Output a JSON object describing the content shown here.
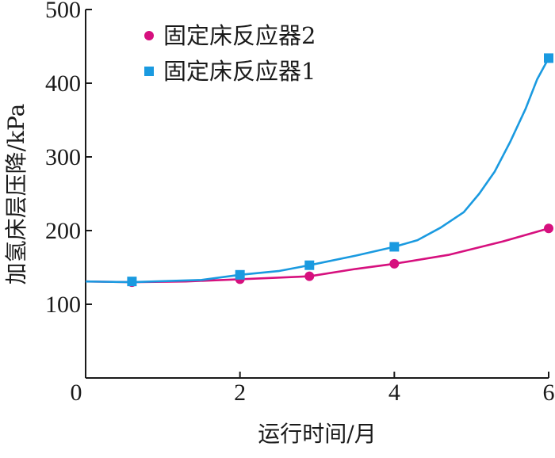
{
  "chart_data": {
    "type": "line",
    "xlabel": "运行时间/月",
    "ylabel": "加氢床层压降/kPa",
    "xlim": [
      0,
      6
    ],
    "ylim": [
      0,
      500
    ],
    "x_ticks": [
      2,
      4,
      6
    ],
    "y_ticks": [
      100,
      200,
      300,
      400,
      500
    ],
    "origin_label": "0",
    "legend_position": "top-left",
    "grid": false,
    "series": [
      {
        "name": "固定床反应器2",
        "color": "#d6107e",
        "marker": "circle",
        "points": [
          [
            0.6,
            130
          ],
          [
            2.0,
            134
          ],
          [
            2.9,
            138
          ],
          [
            4.0,
            155
          ],
          [
            6.0,
            203
          ]
        ],
        "curve": [
          [
            0,
            131
          ],
          [
            0.6,
            130
          ],
          [
            1.3,
            131
          ],
          [
            2.0,
            134
          ],
          [
            2.9,
            138
          ],
          [
            3.5,
            148
          ],
          [
            4.0,
            155
          ],
          [
            4.7,
            167
          ],
          [
            5.4,
            185
          ],
          [
            6.0,
            203
          ]
        ]
      },
      {
        "name": "固定床反应器1",
        "color": "#1a9ae0",
        "marker": "square",
        "points": [
          [
            0.6,
            131
          ],
          [
            2.0,
            140
          ],
          [
            2.9,
            153
          ],
          [
            4.0,
            178
          ],
          [
            6.0,
            434
          ]
        ],
        "curve": [
          [
            0,
            131
          ],
          [
            0.6,
            130
          ],
          [
            1.5,
            133
          ],
          [
            2.0,
            140
          ],
          [
            2.5,
            145
          ],
          [
            2.9,
            153
          ],
          [
            3.5,
            166
          ],
          [
            4.0,
            178
          ],
          [
            4.3,
            187
          ],
          [
            4.6,
            204
          ],
          [
            4.9,
            225
          ],
          [
            5.1,
            250
          ],
          [
            5.3,
            280
          ],
          [
            5.5,
            320
          ],
          [
            5.7,
            365
          ],
          [
            5.85,
            405
          ],
          [
            6.0,
            434
          ]
        ]
      }
    ]
  }
}
